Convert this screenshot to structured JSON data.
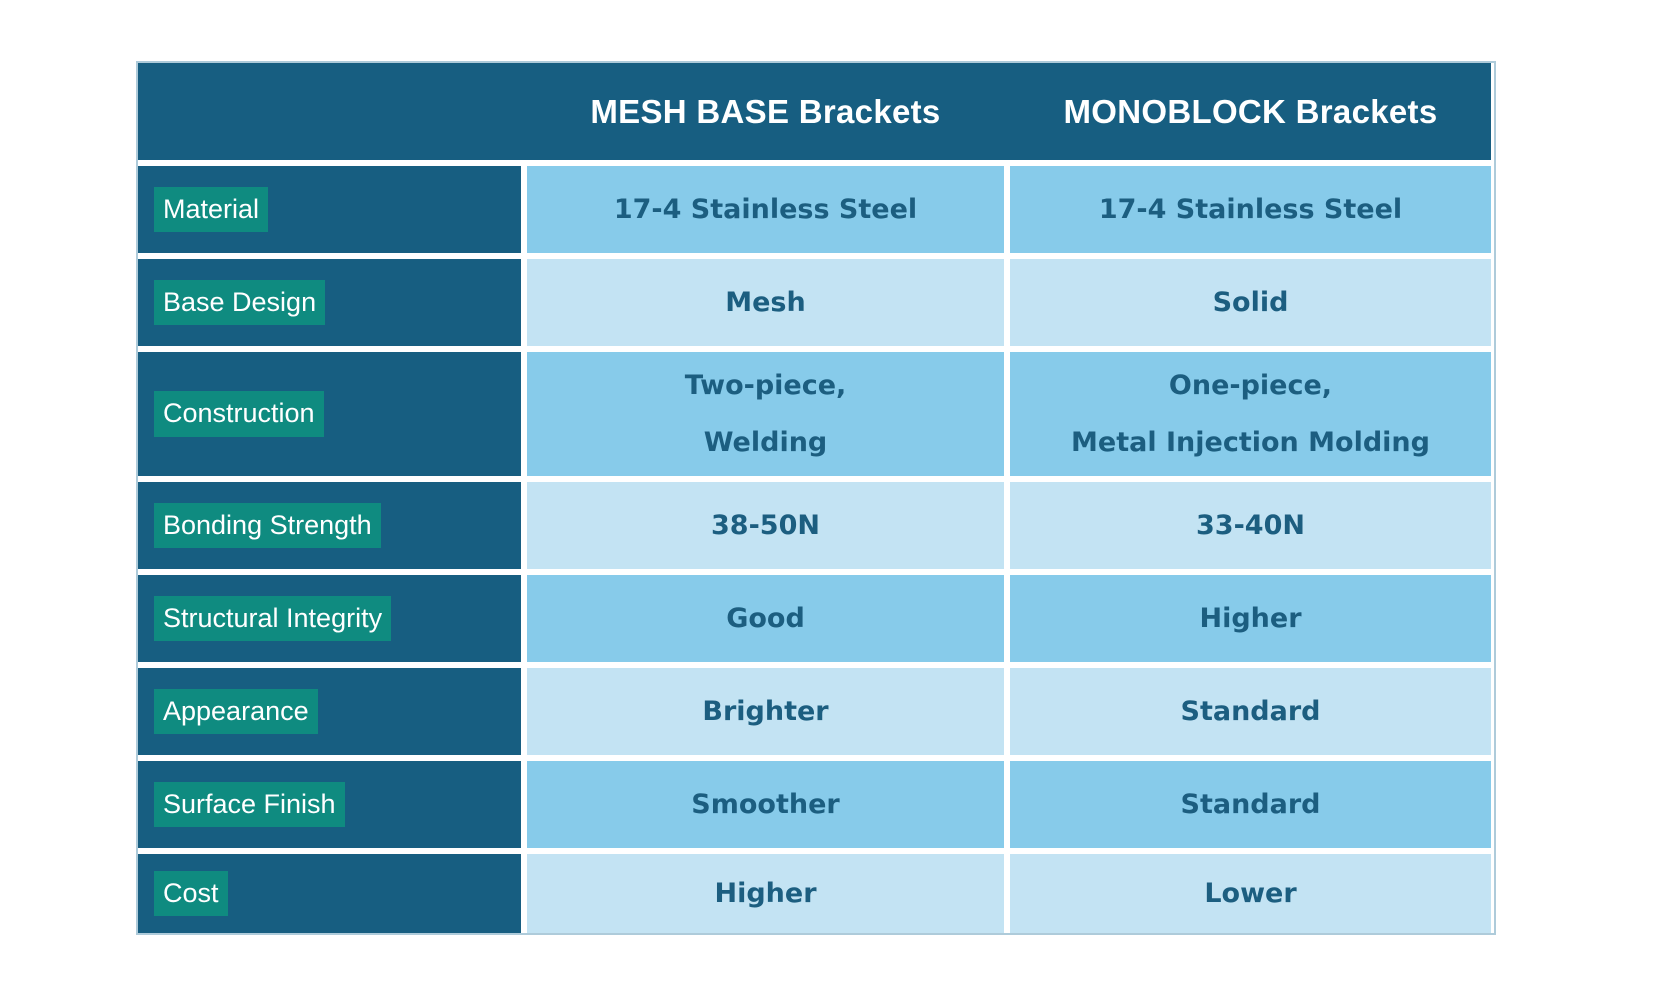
{
  "table": {
    "header": {
      "corner": "",
      "col_mesh": "MESH BASE Brackets",
      "col_mono": "MONOBLOCK Brackets"
    },
    "rows": [
      {
        "label": "Material",
        "mesh": [
          "17-4 Stainless Steel"
        ],
        "mono": [
          "17-4 Stainless Steel"
        ]
      },
      {
        "label": "Base Design",
        "mesh": [
          "Mesh"
        ],
        "mono": [
          "Solid"
        ]
      },
      {
        "label": "Construction",
        "mesh": [
          "Two-piece,",
          "Welding"
        ],
        "mono": [
          "One-piece,",
          "Metal Injection Molding"
        ]
      },
      {
        "label": "Bonding Strength",
        "mesh": [
          "38-50N"
        ],
        "mono": [
          "33-40N"
        ]
      },
      {
        "label": "Structural Integrity",
        "mesh": [
          "Good"
        ],
        "mono": [
          "Higher"
        ]
      },
      {
        "label": "Appearance",
        "mesh": [
          "Brighter"
        ],
        "mono": [
          "Standard"
        ]
      },
      {
        "label": "Surface Finish",
        "mesh": [
          "Smoother"
        ],
        "mono": [
          "Standard"
        ]
      },
      {
        "label": "Cost",
        "mesh": [
          "Higher"
        ],
        "mono": [
          "Lower"
        ]
      }
    ],
    "colors": {
      "header_bg": "#175E81",
      "label_highlight": "#0F8B80",
      "row_medium": "#87CBEA",
      "row_light": "#C3E3F3",
      "value_text": "#1C5E80",
      "divider": "#FFFFFF",
      "table_border": "#AECBDA",
      "header_text": "#FFFFFF",
      "label_text": "#FFFFFF"
    }
  }
}
